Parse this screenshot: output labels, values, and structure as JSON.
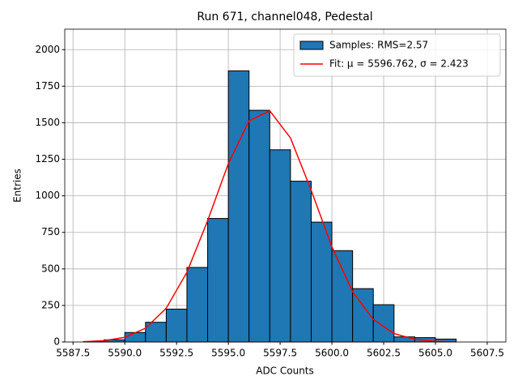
{
  "chart_data": {
    "type": "histogram",
    "title": "Run 671, channel048, Pedestal",
    "xlabel": "ADC Counts",
    "ylabel": "Entries",
    "bins": [
      5588,
      5589,
      5590,
      5591,
      5592,
      5593,
      5594,
      5595,
      5596,
      5597,
      5598,
      5599,
      5600,
      5601,
      5602,
      5603,
      5604,
      5605,
      5606
    ],
    "series": [
      {
        "name": "Samples: RMS=2.57",
        "color": "#1f77b4",
        "edgecolor": "#000000",
        "values": [
          2,
          15,
          65,
          135,
          225,
          510,
          845,
          1855,
          1585,
          1315,
          1100,
          820,
          625,
          365,
          255,
          35,
          30,
          20
        ]
      },
      {
        "name": "Fit: μ = 5596.762, σ = 2.423",
        "type": "line",
        "color": "#ff0000",
        "x": [
          5588,
          5589,
          5590,
          5591,
          5592,
          5593,
          5594,
          5595,
          5596,
          5597,
          5598,
          5599,
          5600,
          5601,
          5602,
          5603,
          5604,
          5605,
          5606
        ],
        "values": [
          2,
          9,
          32,
          94,
          231,
          477,
          830,
          1221,
          1513,
          1582,
          1396,
          1038,
          651,
          344,
          154,
          58,
          18,
          5,
          1
        ]
      }
    ],
    "xlim": [
      5587.1,
      5608.4
    ],
    "ylim": [
      0,
      2140
    ],
    "xticks": [
      5587.5,
      {
        "value": 5590,
        "label": "5590.0"
      },
      5592.5,
      {
        "value": 5595,
        "label": "5595.0"
      },
      5597.5,
      {
        "value": 5600,
        "label": "5600.0"
      },
      5602.5,
      {
        "value": 5605,
        "label": "5605.0"
      },
      5607.5
    ],
    "yticks": [
      0,
      250,
      500,
      750,
      1000,
      1250,
      1500,
      1750,
      2000
    ],
    "grid": true,
    "legend": "upper right"
  }
}
